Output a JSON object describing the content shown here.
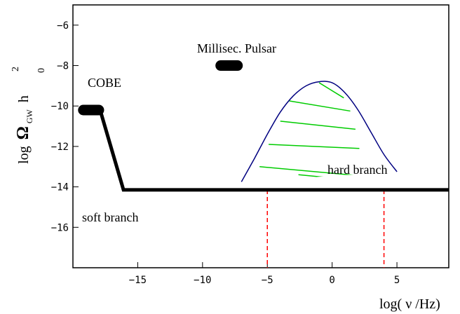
{
  "chart_data": {
    "type": "line",
    "title": "",
    "xlabel": "log( ν /Hz)",
    "ylabel": {
      "log": "log",
      "omega": "Ω",
      "sub": "GW",
      "h": "h",
      "sup": "2",
      "zero": "0"
    },
    "xlim": [
      -20,
      9
    ],
    "ylim": [
      -18,
      -5
    ],
    "x_ticks": [
      -15,
      -10,
      -5,
      0,
      5
    ],
    "y_ticks": [
      -6,
      -8,
      -10,
      -12,
      -14,
      -16
    ],
    "grid": false,
    "soft_branch": {
      "label": "soft branch",
      "points": [
        [
          -19.5,
          -10.2
        ],
        [
          -17.9,
          -10.2
        ],
        [
          -16.1,
          -14.15
        ],
        [
          9,
          -14.15
        ]
      ]
    },
    "cobe": {
      "label": "COBE",
      "x_range": [
        -19.2,
        -18.0
      ],
      "y": -10.2
    },
    "pulsar": {
      "label": "Millisec. Pulsar",
      "x_range": [
        -8.6,
        -7.3
      ],
      "y": -8.0
    },
    "hard_branch": {
      "label": "hard branch",
      "curve": [
        [
          -7.0,
          -13.75
        ],
        [
          -6.0,
          -12.6
        ],
        [
          -5.0,
          -11.4
        ],
        [
          -4.0,
          -10.3
        ],
        [
          -3.0,
          -9.5
        ],
        [
          -2.0,
          -9.0
        ],
        [
          -1.0,
          -8.8
        ],
        [
          0.0,
          -8.85
        ],
        [
          1.0,
          -9.35
        ],
        [
          2.0,
          -10.2
        ],
        [
          3.0,
          -11.3
        ],
        [
          4.0,
          -12.4
        ],
        [
          5.0,
          -13.25
        ]
      ],
      "hatch_lines": [
        [
          [
            -1.0,
            -8.85
          ],
          [
            0.9,
            -9.6
          ]
        ],
        [
          [
            -3.3,
            -9.75
          ],
          [
            1.4,
            -10.25
          ]
        ],
        [
          [
            -4.0,
            -10.75
          ],
          [
            1.8,
            -11.15
          ]
        ],
        [
          [
            -4.9,
            -11.9
          ],
          [
            2.1,
            -12.1
          ]
        ],
        [
          [
            -5.6,
            -13.0
          ],
          [
            3.0,
            -13.5
          ]
        ],
        [
          [
            -2.6,
            -13.4
          ],
          [
            3.9,
            -13.8
          ]
        ],
        [
          [
            1.0,
            -14.0
          ],
          [
            4.4,
            -14.3
          ]
        ]
      ],
      "hatch_color": "#00cc00",
      "curve_color": "#000080"
    },
    "cutoffs": {
      "x": [
        -5,
        4
      ],
      "y_top": -14.15,
      "color": "#ff0000"
    }
  }
}
